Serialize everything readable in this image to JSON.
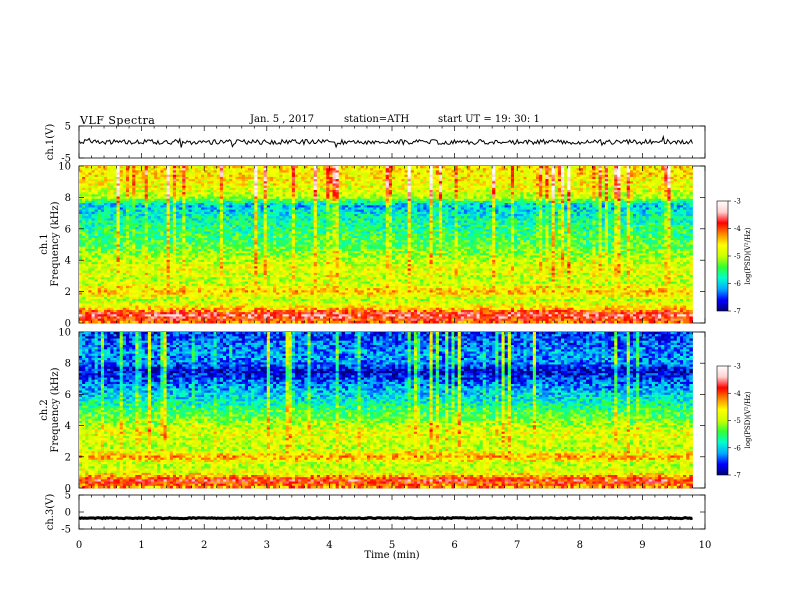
{
  "header": {
    "title": "VLF  Spectra",
    "date": "Jan.  5   , 2017",
    "station": "station=ATH",
    "start": "start  UT  =    19: 30: 1"
  },
  "colors": {
    "spectrum": [
      "#00007a",
      "#0000ff",
      "#00aaff",
      "#00ffcc",
      "#33ff33",
      "#ccff00",
      "#ffff00",
      "#ff8800",
      "#ff0000",
      "#ffd0d0",
      "#ffffff"
    ],
    "waveform": "#000000"
  },
  "chart_data": [
    {
      "type": "line",
      "name": "ch1-waveform",
      "ylabel": "ch.1(V)",
      "ylim": [
        -5,
        5
      ],
      "yticks": [
        "5",
        "-5"
      ],
      "description_series": {
        "x_min": [
          0,
          9.8
        ],
        "level_V": 0.0,
        "noise_amplitude_V": 1.5
      }
    },
    {
      "type": "heatmap",
      "name": "ch1-spectrogram",
      "ylabel": [
        "ch.1",
        "Frequency  (kHz)"
      ],
      "ylim": [
        0,
        10
      ],
      "yticks": [
        "0",
        "2",
        "4",
        "6",
        "8",
        "10"
      ],
      "xlim": [
        0,
        10
      ],
      "data_extent_x_min": 9.8,
      "colorbar": {
        "label": "log(PSD)(V²/Hz)",
        "range": [
          -7,
          -3
        ],
        "ticks": [
          "-3",
          "-4",
          "-5",
          "-6",
          "-7"
        ]
      },
      "band_profile_log_psd": {
        "freq_kHz": [
          0,
          0.5,
          1,
          1.5,
          2,
          2.5,
          3,
          3.5,
          4,
          4.5,
          5,
          5.5,
          6,
          6.5,
          7,
          7.5,
          8,
          8.5,
          9,
          9.5,
          10
        ],
        "log_psd": [
          -4.2,
          -3.6,
          -4.6,
          -5.0,
          -4.4,
          -5.0,
          -4.9,
          -4.8,
          -5.0,
          -5.2,
          -5.4,
          -5.5,
          -5.6,
          -5.7,
          -5.9,
          -6.1,
          -5.0,
          -4.8,
          -4.7,
          -4.6,
          -4.6
        ]
      }
    },
    {
      "type": "heatmap",
      "name": "ch2-spectrogram",
      "ylabel": [
        "ch.2",
        "Frequency  (kHz)"
      ],
      "ylim": [
        0,
        10
      ],
      "yticks": [
        "0",
        "2",
        "4",
        "6",
        "8",
        "10"
      ],
      "xlim": [
        0,
        10
      ],
      "data_extent_x_min": 9.8,
      "colorbar": {
        "label": "log(PSD)(V²/Hz)",
        "range": [
          -7,
          -3
        ],
        "ticks": [
          "-3",
          "-4",
          "-5",
          "-6",
          "-7"
        ]
      },
      "band_profile_log_psd": {
        "freq_kHz": [
          0,
          0.5,
          1,
          1.5,
          2,
          2.5,
          3,
          3.5,
          4,
          4.5,
          5,
          5.5,
          6,
          6.5,
          7,
          7.5,
          8,
          8.5,
          9,
          9.5,
          10
        ],
        "log_psd": [
          -4.3,
          -3.8,
          -4.8,
          -5.0,
          -4.3,
          -5.0,
          -4.9,
          -4.8,
          -5.0,
          -5.3,
          -5.5,
          -5.8,
          -6.0,
          -6.2,
          -6.5,
          -6.8,
          -6.3,
          -6.2,
          -6.3,
          -6.4,
          -6.5
        ]
      }
    },
    {
      "type": "line",
      "name": "ch3-waveform",
      "ylabel": "ch.3(V)",
      "ylim": [
        -5,
        5
      ],
      "yticks": [
        "5",
        "0",
        "-5"
      ],
      "description_series": {
        "x_min": [
          0,
          9.8
        ],
        "level_V": -1.8,
        "noise_amplitude_V": 0.3
      }
    }
  ],
  "xaxis": {
    "label": "Time  (min)",
    "range": [
      0,
      10
    ],
    "ticks": [
      "0",
      "1",
      "2",
      "3",
      "4",
      "5",
      "6",
      "7",
      "8",
      "9",
      "10"
    ]
  }
}
